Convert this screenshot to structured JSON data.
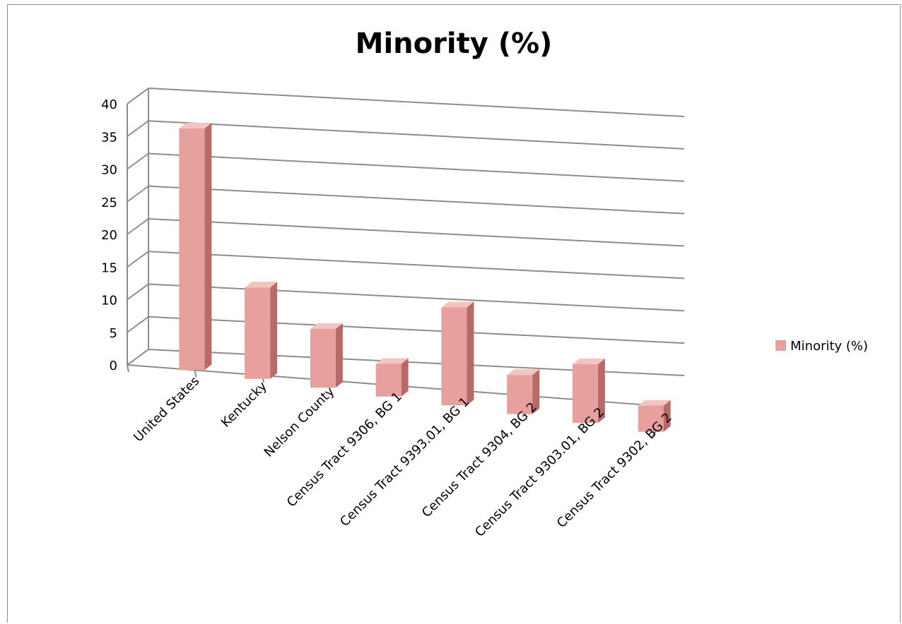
{
  "chart_data": {
    "type": "bar",
    "title": "Minority (%)",
    "categories": [
      "United States",
      "Kentucky",
      "Nelson County",
      "Census Tract 9306, BG 1",
      "Census Tract 9393.01, BG 1",
      "Census Tract 9304, BG 2",
      "Census Tract 9303.01, BG 2",
      "Census Tract 9302, BG 2"
    ],
    "series": [
      {
        "name": "Minority (%)",
        "values": [
          37,
          14,
          9,
          5,
          15,
          6,
          9,
          4
        ]
      }
    ],
    "yticks": [
      "0",
      "5",
      "10",
      "15",
      "20",
      "25",
      "30",
      "35",
      "40"
    ],
    "ylim": [
      0,
      40
    ],
    "grid": true,
    "legend_position": "right",
    "colors": {
      "bar_front": "#e8a09e",
      "bar_side": "#b86a68",
      "bar_top": "#f2c4c2",
      "grid": "#8c8c8c"
    }
  }
}
